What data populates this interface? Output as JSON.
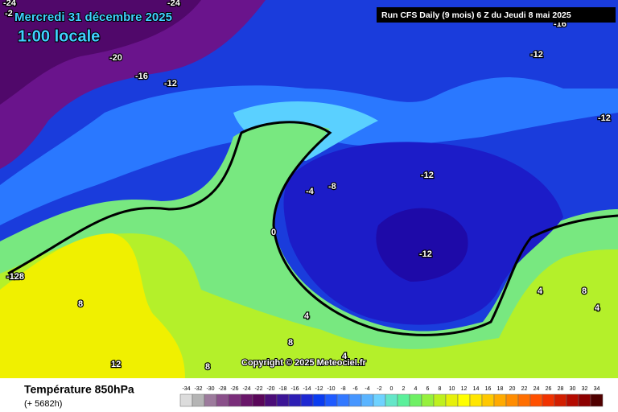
{
  "header": {
    "date": "Mercredi 31 décembre 2025",
    "time": "1:00 locale",
    "run": "Run CFS Daily (9 mois) 6 Z du Jeudi 8 mai 2025"
  },
  "map": {
    "contour_labels": [
      "-24",
      "-2",
      "-24",
      "-16",
      "-20",
      "-16",
      "-12",
      "-12",
      "-12",
      "-12",
      "-4",
      "-8",
      "0",
      "-12",
      "-128",
      "8",
      "4",
      "8",
      "4",
      "12",
      "8",
      "8",
      "4",
      "4"
    ],
    "copyright": "Copyright © 2025 Meteociel.fr"
  },
  "footer": {
    "title": "Température 850hPa",
    "subtitle": "(+ 5682h)"
  },
  "legend": {
    "values": [
      -34,
      -32,
      -30,
      -28,
      -26,
      -24,
      -22,
      -20,
      -18,
      -16,
      -14,
      -12,
      -10,
      -8,
      -6,
      -4,
      -2,
      0,
      2,
      4,
      6,
      8,
      10,
      12,
      14,
      16,
      18,
      20,
      22,
      24,
      26,
      28,
      30,
      32,
      34
    ],
    "colors": [
      "#dcdcdc",
      "#b4b4b4",
      "#9c7a9c",
      "#8a4f8a",
      "#7a2d7a",
      "#6a166a",
      "#5a065a",
      "#4b0d78",
      "#3c1496",
      "#2d1eb4",
      "#1e28d2",
      "#0a3cf0",
      "#1e5aff",
      "#3278ff",
      "#4696ff",
      "#5ab4ff",
      "#6ed2ff",
      "#64e6c8",
      "#5af09b",
      "#6ef064",
      "#96f03c",
      "#bef01e",
      "#e6f00a",
      "#ffff00",
      "#ffe600",
      "#ffc800",
      "#ffaa00",
      "#ff8c00",
      "#ff6e00",
      "#ff5000",
      "#f03200",
      "#d21e00",
      "#b40a00",
      "#8c0000",
      "#500000"
    ]
  }
}
